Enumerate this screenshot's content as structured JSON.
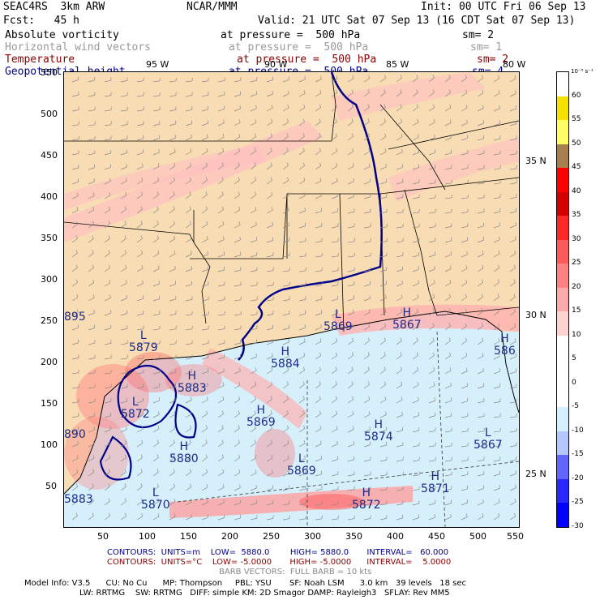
{
  "header": {
    "model": "SEAC4RS  3km ARW",
    "source": "NCAR/MMM",
    "init": "Init: 00 UTC Fri 06 Sep 13",
    "fcst": "Fcst:   45 h",
    "valid": "Valid: 21 UTC Sat 07 Sep 13 (16 CDT Sat 07 Sep 13)"
  },
  "fields": [
    {
      "name": "Absolute vorticity",
      "level": "at pressure =  500 hPa",
      "sm": "sm= 2",
      "color": "#000000"
    },
    {
      "name": "Horizontal wind vectors",
      "level": "at pressure =  500 hPa",
      "sm": "sm= 1",
      "color": "#999999"
    },
    {
      "name": "Temperature",
      "level": "at pressure =  500 hPa",
      "sm": "sm= 2",
      "color": "#880000"
    },
    {
      "name": "Geopotential height",
      "level": "at pressure =  500 hPa",
      "sm": "sm= 4",
      "color": "#000088"
    }
  ],
  "axes": {
    "x_ticks": [
      "50",
      "100",
      "150",
      "200",
      "250",
      "300",
      "350",
      "400",
      "450",
      "500",
      "550"
    ],
    "y_ticks": [
      "50",
      "100",
      "150",
      "200",
      "250",
      "300",
      "350",
      "400",
      "450",
      "500",
      "550"
    ],
    "lon_labels": [
      "95 W",
      "90 W",
      "85 W",
      "80 W"
    ],
    "lat_labels": [
      "35 N",
      "30 N",
      "25 N"
    ]
  },
  "map_labels": {
    "highs_lows": [
      {
        "sym": "L",
        "val": "5879"
      },
      {
        "sym": "H",
        "val": "5884"
      },
      {
        "sym": "L",
        "val": "5869"
      },
      {
        "sym": "H",
        "val": "5867"
      },
      {
        "sym": "H",
        "val": "586"
      },
      {
        "sym": "H",
        "val": "5883"
      },
      {
        "sym": "H",
        "val": "5869"
      },
      {
        "sym": "L",
        "val": "5872"
      },
      {
        "sym": "H",
        "val": "5874"
      },
      {
        "sym": "L",
        "val": "5867"
      },
      {
        "sym": "H",
        "val": "5880"
      },
      {
        "sym": "L",
        "val": "5869"
      },
      {
        "sym": "H",
        "val": "5871"
      },
      {
        "sym": "H",
        "val": "5872"
      },
      {
        "sym": "L",
        "val": "5870"
      },
      {
        "sym": "",
        "val": "895"
      },
      {
        "sym": "",
        "val": "890"
      },
      {
        "sym": "",
        "val": "5883"
      }
    ]
  },
  "colorbar": {
    "unit": "10⁻⁵ s⁻¹",
    "labels": [
      "60",
      "55",
      "50",
      "45",
      "40",
      "35",
      "30",
      "25",
      "20",
      "15",
      "10",
      "5",
      "0",
      "-5",
      "-10",
      "-15",
      "-20",
      "-25",
      "-30"
    ],
    "colors": [
      "#ffffff",
      "#f6e000",
      "#ffff64",
      "#a88050",
      "#ff0000",
      "#d40000",
      "#ff2828",
      "#ff5a5a",
      "#ff8282",
      "#ffaaaa",
      "#ffd2d2",
      "#ffffff",
      "#ffffff",
      "#ffffff",
      "#d2f0ff",
      "#b4c8ff",
      "#6464ff",
      "#2828ff",
      "#0000ff"
    ]
  },
  "footer": {
    "line1": "CONTOURS:  UNITS=m    LOW=  5880.0        HIGH= 5880.0       INTERVAL=   60.000",
    "line2": "CONTOURS:  UNITS=°C    LOW= -5.0000       HIGH= -5.0000      INTERVAL=    5.0000",
    "line3": "BARB VECTORS:  FULL BARB = 10 kts",
    "info1": "Model Info: V3.5      CU: No Cu      MP: Thompson     PBL: YSU       SF: Noah LSM      3.0 km   39 levels   18 sec",
    "info2": "LW: RRTMG    SW: RRTMG   DIFF: simple KM: 2D Smagor DAMP: Rayleigh3   SFLAY: Rev MM5"
  },
  "colors": {
    "land": "#f8dcb4",
    "ocean": "#d6f0fb",
    "vort_pink": "#ffc0c0",
    "height_contour": "#000088",
    "temp_contour": "#880000"
  }
}
